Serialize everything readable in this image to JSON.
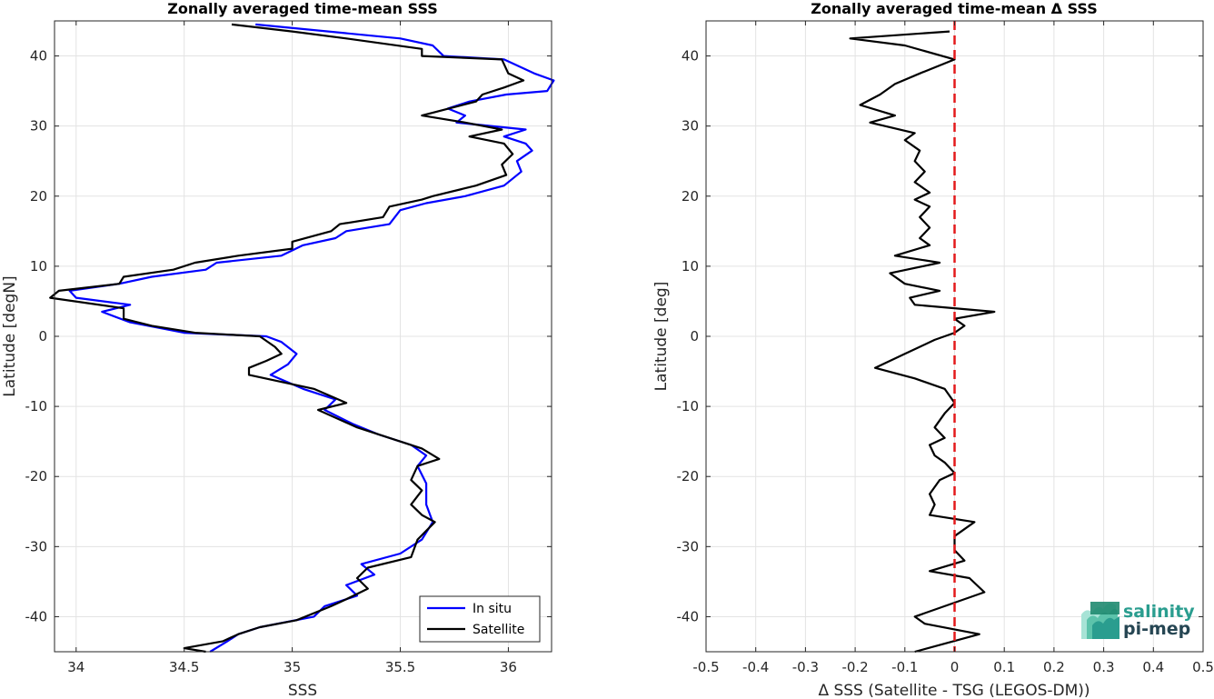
{
  "chart_data": [
    {
      "type": "line",
      "title": "Zonally averaged time-mean SSS",
      "xlabel": "SSS",
      "ylabel": "Latitude [degN]",
      "xlim": [
        33.9,
        36.2
      ],
      "ylim": [
        -45,
        45
      ],
      "xticks": [
        34,
        34.5,
        35,
        35.5,
        36
      ],
      "xtick_labels": [
        "34",
        "34.5",
        "35",
        "35.5",
        "36"
      ],
      "yticks": [
        -40,
        -30,
        -20,
        -10,
        0,
        10,
        20,
        30,
        40
      ],
      "ytick_labels": [
        "-40",
        "-30",
        "-20",
        "-10",
        "0",
        "10",
        "20",
        "30",
        "40"
      ],
      "grid": true,
      "legend": "bottom-right",
      "series": [
        {
          "name": "In situ",
          "color": "#0000ff",
          "points": [
            [
              34.83,
              44.5
            ],
            [
              35.5,
              42.5
            ],
            [
              35.65,
              41.5
            ],
            [
              35.7,
              40.0
            ],
            [
              35.98,
              39.5
            ],
            [
              36.12,
              37.5
            ],
            [
              36.21,
              36.5
            ],
            [
              36.18,
              35.0
            ],
            [
              35.99,
              34.5
            ],
            [
              35.82,
              33.5
            ],
            [
              35.72,
              32.5
            ],
            [
              35.8,
              31.5
            ],
            [
              35.76,
              30.5
            ],
            [
              36.08,
              29.5
            ],
            [
              35.98,
              28.5
            ],
            [
              36.08,
              27.5
            ],
            [
              36.11,
              26.5
            ],
            [
              36.04,
              25.0
            ],
            [
              36.06,
              23.5
            ],
            [
              35.98,
              21.5
            ],
            [
              35.8,
              20.0
            ],
            [
              35.62,
              19.0
            ],
            [
              35.5,
              18.0
            ],
            [
              35.45,
              16.0
            ],
            [
              35.25,
              15.0
            ],
            [
              35.2,
              14.0
            ],
            [
              35.05,
              13.0
            ],
            [
              34.95,
              11.5
            ],
            [
              34.65,
              10.5
            ],
            [
              34.6,
              9.5
            ],
            [
              34.35,
              8.5
            ],
            [
              34.2,
              7.5
            ],
            [
              33.97,
              6.5
            ],
            [
              34.0,
              5.5
            ],
            [
              34.25,
              4.5
            ],
            [
              34.12,
              3.5
            ],
            [
              34.25,
              2.0
            ],
            [
              34.5,
              0.5
            ],
            [
              34.88,
              0.0
            ],
            [
              34.95,
              -0.8
            ],
            [
              35.02,
              -2.5
            ],
            [
              34.98,
              -4.0
            ],
            [
              34.9,
              -5.5
            ],
            [
              35.05,
              -7.5
            ],
            [
              35.2,
              -9.0
            ],
            [
              35.15,
              -10.5
            ],
            [
              35.28,
              -12.5
            ],
            [
              35.4,
              -14.0
            ],
            [
              35.55,
              -15.5
            ],
            [
              35.62,
              -17.0
            ],
            [
              35.58,
              -18.5
            ],
            [
              35.62,
              -21.0
            ],
            [
              35.62,
              -24.0
            ],
            [
              35.65,
              -26.5
            ],
            [
              35.6,
              -29.0
            ],
            [
              35.5,
              -31.0
            ],
            [
              35.32,
              -32.5
            ],
            [
              35.38,
              -34.0
            ],
            [
              35.25,
              -35.5
            ],
            [
              35.3,
              -37.0
            ],
            [
              35.15,
              -38.5
            ],
            [
              35.1,
              -40.0
            ],
            [
              34.85,
              -41.5
            ],
            [
              34.75,
              -42.5
            ],
            [
              34.7,
              -43.5
            ],
            [
              34.62,
              -45.0
            ]
          ]
        },
        {
          "name": "Satellite",
          "color": "#000000",
          "points": [
            [
              34.72,
              44.5
            ],
            [
              35.0,
              43.5
            ],
            [
              35.25,
              42.5
            ],
            [
              35.6,
              41.0
            ],
            [
              35.6,
              40.0
            ],
            [
              35.97,
              39.5
            ],
            [
              36.0,
              37.5
            ],
            [
              36.07,
              36.5
            ],
            [
              35.98,
              35.5
            ],
            [
              35.88,
              34.5
            ],
            [
              35.85,
              33.5
            ],
            [
              35.6,
              31.5
            ],
            [
              35.8,
              30.5
            ],
            [
              35.97,
              29.5
            ],
            [
              35.82,
              28.5
            ],
            [
              35.98,
              27.5
            ],
            [
              36.02,
              26.0
            ],
            [
              35.97,
              24.5
            ],
            [
              35.99,
              23.0
            ],
            [
              35.85,
              21.5
            ],
            [
              35.65,
              20.0
            ],
            [
              35.6,
              19.5
            ],
            [
              35.45,
              18.5
            ],
            [
              35.42,
              17.0
            ],
            [
              35.22,
              16.0
            ],
            [
              35.18,
              15.0
            ],
            [
              35.0,
              13.5
            ],
            [
              35.0,
              12.5
            ],
            [
              34.75,
              11.5
            ],
            [
              34.55,
              10.5
            ],
            [
              34.45,
              9.5
            ],
            [
              34.22,
              8.5
            ],
            [
              34.2,
              7.5
            ],
            [
              33.92,
              6.5
            ],
            [
              33.88,
              5.5
            ],
            [
              34.22,
              4.0
            ],
            [
              34.22,
              2.5
            ],
            [
              34.35,
              1.5
            ],
            [
              34.55,
              0.5
            ],
            [
              34.85,
              0.0
            ],
            [
              34.92,
              -1.5
            ],
            [
              34.95,
              -2.5
            ],
            [
              34.88,
              -3.5
            ],
            [
              34.8,
              -4.5
            ],
            [
              34.8,
              -5.5
            ],
            [
              35.1,
              -7.5
            ],
            [
              35.25,
              -9.5
            ],
            [
              35.12,
              -10.5
            ],
            [
              35.3,
              -13.0
            ],
            [
              35.45,
              -14.5
            ],
            [
              35.6,
              -16.0
            ],
            [
              35.68,
              -17.5
            ],
            [
              35.58,
              -18.5
            ],
            [
              35.55,
              -20.5
            ],
            [
              35.6,
              -22.0
            ],
            [
              35.55,
              -24.0
            ],
            [
              35.6,
              -25.5
            ],
            [
              35.66,
              -26.5
            ],
            [
              35.58,
              -29.0
            ],
            [
              35.55,
              -31.5
            ],
            [
              35.35,
              -33.0
            ],
            [
              35.3,
              -34.5
            ],
            [
              35.35,
              -36.0
            ],
            [
              35.25,
              -37.5
            ],
            [
              35.18,
              -38.5
            ],
            [
              35.02,
              -40.5
            ],
            [
              34.85,
              -41.5
            ],
            [
              34.75,
              -42.5
            ],
            [
              34.68,
              -43.5
            ],
            [
              34.5,
              -44.5
            ],
            [
              34.6,
              -45.0
            ]
          ]
        }
      ]
    },
    {
      "type": "line",
      "title": "Zonally averaged time-mean Δ SSS",
      "xlabel": "Δ SSS (Satellite - TSG (LEGOS-DM))",
      "ylabel": "Latitude [deg]",
      "xlim": [
        -0.5,
        0.5
      ],
      "ylim": [
        -45,
        45
      ],
      "xticks": [
        -0.5,
        -0.4,
        -0.3,
        -0.2,
        -0.1,
        0,
        0.1,
        0.2,
        0.3,
        0.4,
        0.5
      ],
      "xtick_labels": [
        "-0.5",
        "-0.4",
        "-0.3",
        "-0.2",
        "-0.1",
        "0",
        "0.1",
        "0.2",
        "0.3",
        "0.4",
        "0.5"
      ],
      "yticks": [
        -40,
        -30,
        -20,
        -10,
        0,
        10,
        20,
        30,
        40
      ],
      "ytick_labels": [
        "-40",
        "-30",
        "-20",
        "-10",
        "0",
        "10",
        "20",
        "30",
        "40"
      ],
      "grid": true,
      "reference_line": {
        "x": 0,
        "color": "#e31a1c",
        "style": "dashed"
      },
      "series": [
        {
          "color": "#000000",
          "points": [
            [
              -0.01,
              43.5
            ],
            [
              -0.21,
              42.5
            ],
            [
              -0.1,
              41.5
            ],
            [
              0.0,
              39.5
            ],
            [
              -0.07,
              37.5
            ],
            [
              -0.12,
              36.0
            ],
            [
              -0.15,
              34.5
            ],
            [
              -0.19,
              33.0
            ],
            [
              -0.12,
              31.5
            ],
            [
              -0.17,
              30.5
            ],
            [
              -0.08,
              29.0
            ],
            [
              -0.1,
              28.0
            ],
            [
              -0.07,
              26.5
            ],
            [
              -0.08,
              25.0
            ],
            [
              -0.06,
              23.5
            ],
            [
              -0.08,
              22.0
            ],
            [
              -0.05,
              20.5
            ],
            [
              -0.08,
              19.5
            ],
            [
              -0.05,
              18.5
            ],
            [
              -0.07,
              17.0
            ],
            [
              -0.05,
              15.5
            ],
            [
              -0.07,
              14.0
            ],
            [
              -0.05,
              13.0
            ],
            [
              -0.12,
              11.5
            ],
            [
              -0.03,
              10.5
            ],
            [
              -0.13,
              9.0
            ],
            [
              -0.1,
              7.5
            ],
            [
              -0.03,
              6.5
            ],
            [
              -0.09,
              5.5
            ],
            [
              -0.08,
              4.5
            ],
            [
              0.08,
              3.5
            ],
            [
              0.0,
              2.5
            ],
            [
              0.02,
              1.5
            ],
            [
              0.0,
              0.5
            ],
            [
              -0.04,
              -0.5
            ],
            [
              -0.1,
              -2.5
            ],
            [
              -0.16,
              -4.5
            ],
            [
              -0.08,
              -6.0
            ],
            [
              -0.02,
              -7.5
            ],
            [
              0.0,
              -9.5
            ],
            [
              -0.02,
              -11.0
            ],
            [
              -0.04,
              -13.0
            ],
            [
              -0.02,
              -14.5
            ],
            [
              -0.05,
              -15.5
            ],
            [
              -0.04,
              -17.0
            ],
            [
              -0.02,
              -18.0
            ],
            [
              0.0,
              -19.5
            ],
            [
              -0.03,
              -20.5
            ],
            [
              -0.05,
              -22.5
            ],
            [
              -0.04,
              -24.0
            ],
            [
              -0.05,
              -25.5
            ],
            [
              0.04,
              -26.5
            ],
            [
              0.0,
              -28.5
            ],
            [
              0.0,
              -30.5
            ],
            [
              0.02,
              -32.0
            ],
            [
              -0.05,
              -33.5
            ],
            [
              0.03,
              -34.5
            ],
            [
              0.06,
              -36.5
            ],
            [
              -0.08,
              -40.0
            ],
            [
              -0.06,
              -41.0
            ],
            [
              0.05,
              -42.5
            ],
            [
              -0.08,
              -45.0
            ]
          ]
        }
      ]
    }
  ],
  "logo": {
    "line1": "salinity",
    "line2": "pi-mep"
  }
}
